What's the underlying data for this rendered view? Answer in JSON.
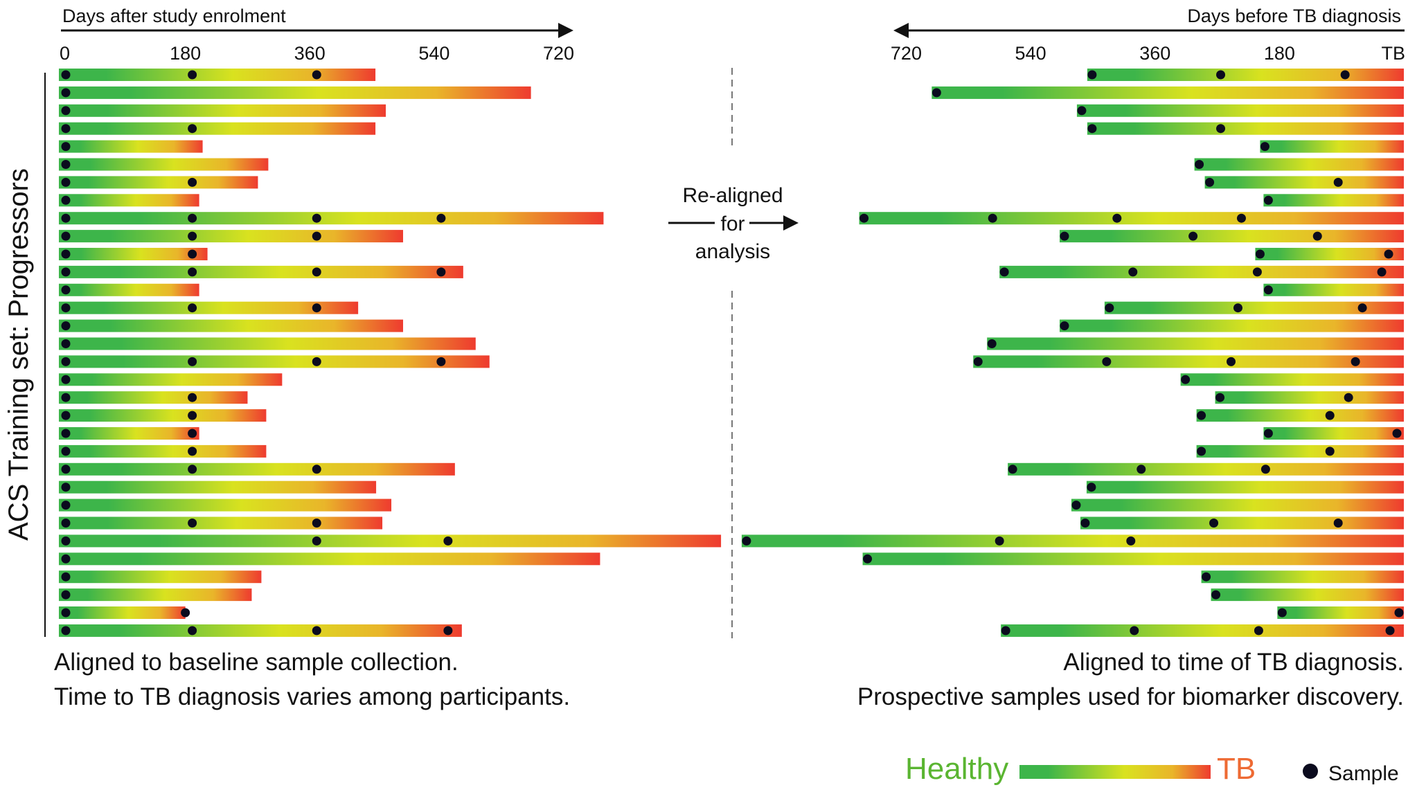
{
  "ylabel": "ACS Training set: Progressors",
  "left_panel": {
    "axis_title": "Days after study enrolment",
    "ticks": [
      "0",
      "180",
      "360",
      "540",
      "720"
    ],
    "caption_lines": [
      "Aligned to baseline sample collection.",
      "Time to TB diagnosis varies among participants."
    ]
  },
  "right_panel": {
    "axis_title": "Days before TB diagnosis",
    "ticks": [
      "720",
      "540",
      "360",
      "180",
      "TB"
    ],
    "caption_lines": [
      "Aligned to time of TB diagnosis.",
      "Prospective samples used for biomarker discovery."
    ]
  },
  "center_label_lines": [
    "Re-aligned",
    "for",
    "analysis"
  ],
  "legend": {
    "healthy": "Healthy",
    "tb": "TB",
    "sample": "Sample"
  },
  "colors": {
    "healthy": "#3db54a",
    "mid": "#d9e21f",
    "late": "#e9b52a",
    "tb": "#ee3b2f"
  },
  "chart_data": {
    "type": "timeline",
    "unit": "days",
    "participants": [
      {
        "days_to_tb": 455,
        "samples": [
          0,
          190,
          370
        ]
      },
      {
        "days_to_tb": 680,
        "samples": [
          0
        ]
      },
      {
        "days_to_tb": 470,
        "samples": [
          0
        ]
      },
      {
        "days_to_tb": 455,
        "samples": [
          0,
          190
        ]
      },
      {
        "days_to_tb": 205,
        "samples": [
          0
        ]
      },
      {
        "days_to_tb": 300,
        "samples": [
          0
        ]
      },
      {
        "days_to_tb": 285,
        "samples": [
          0,
          190
        ]
      },
      {
        "days_to_tb": 200,
        "samples": [
          0
        ]
      },
      {
        "days_to_tb": 785,
        "samples": [
          0,
          190,
          370,
          550
        ]
      },
      {
        "days_to_tb": 495,
        "samples": [
          0,
          190,
          370
        ]
      },
      {
        "days_to_tb": 212,
        "samples": [
          0,
          190
        ]
      },
      {
        "days_to_tb": 582,
        "samples": [
          0,
          190,
          370,
          550
        ]
      },
      {
        "days_to_tb": 200,
        "samples": [
          0
        ]
      },
      {
        "days_to_tb": 430,
        "samples": [
          0,
          190,
          370
        ]
      },
      {
        "days_to_tb": 495,
        "samples": [
          0
        ]
      },
      {
        "days_to_tb": 600,
        "samples": [
          0
        ]
      },
      {
        "days_to_tb": 620,
        "samples": [
          0,
          190,
          370,
          550
        ]
      },
      {
        "days_to_tb": 320,
        "samples": [
          0
        ]
      },
      {
        "days_to_tb": 270,
        "samples": [
          0,
          190
        ]
      },
      {
        "days_to_tb": 297,
        "samples": [
          0,
          190
        ]
      },
      {
        "days_to_tb": 200,
        "samples": [
          0,
          190
        ]
      },
      {
        "days_to_tb": 297,
        "samples": [
          0,
          190
        ]
      },
      {
        "days_to_tb": 570,
        "samples": [
          0,
          190,
          370
        ]
      },
      {
        "days_to_tb": 456,
        "samples": [
          0
        ]
      },
      {
        "days_to_tb": 478,
        "samples": [
          0
        ]
      },
      {
        "days_to_tb": 465,
        "samples": [
          0,
          190,
          370
        ]
      },
      {
        "days_to_tb": 955,
        "samples": [
          0,
          370,
          560
        ]
      },
      {
        "days_to_tb": 780,
        "samples": [
          0
        ]
      },
      {
        "days_to_tb": 290,
        "samples": [
          0
        ]
      },
      {
        "days_to_tb": 276,
        "samples": [
          0
        ]
      },
      {
        "days_to_tb": 180,
        "samples": [
          0,
          180
        ]
      },
      {
        "days_to_tb": 580,
        "samples": [
          0,
          190,
          370,
          560
        ]
      }
    ]
  }
}
